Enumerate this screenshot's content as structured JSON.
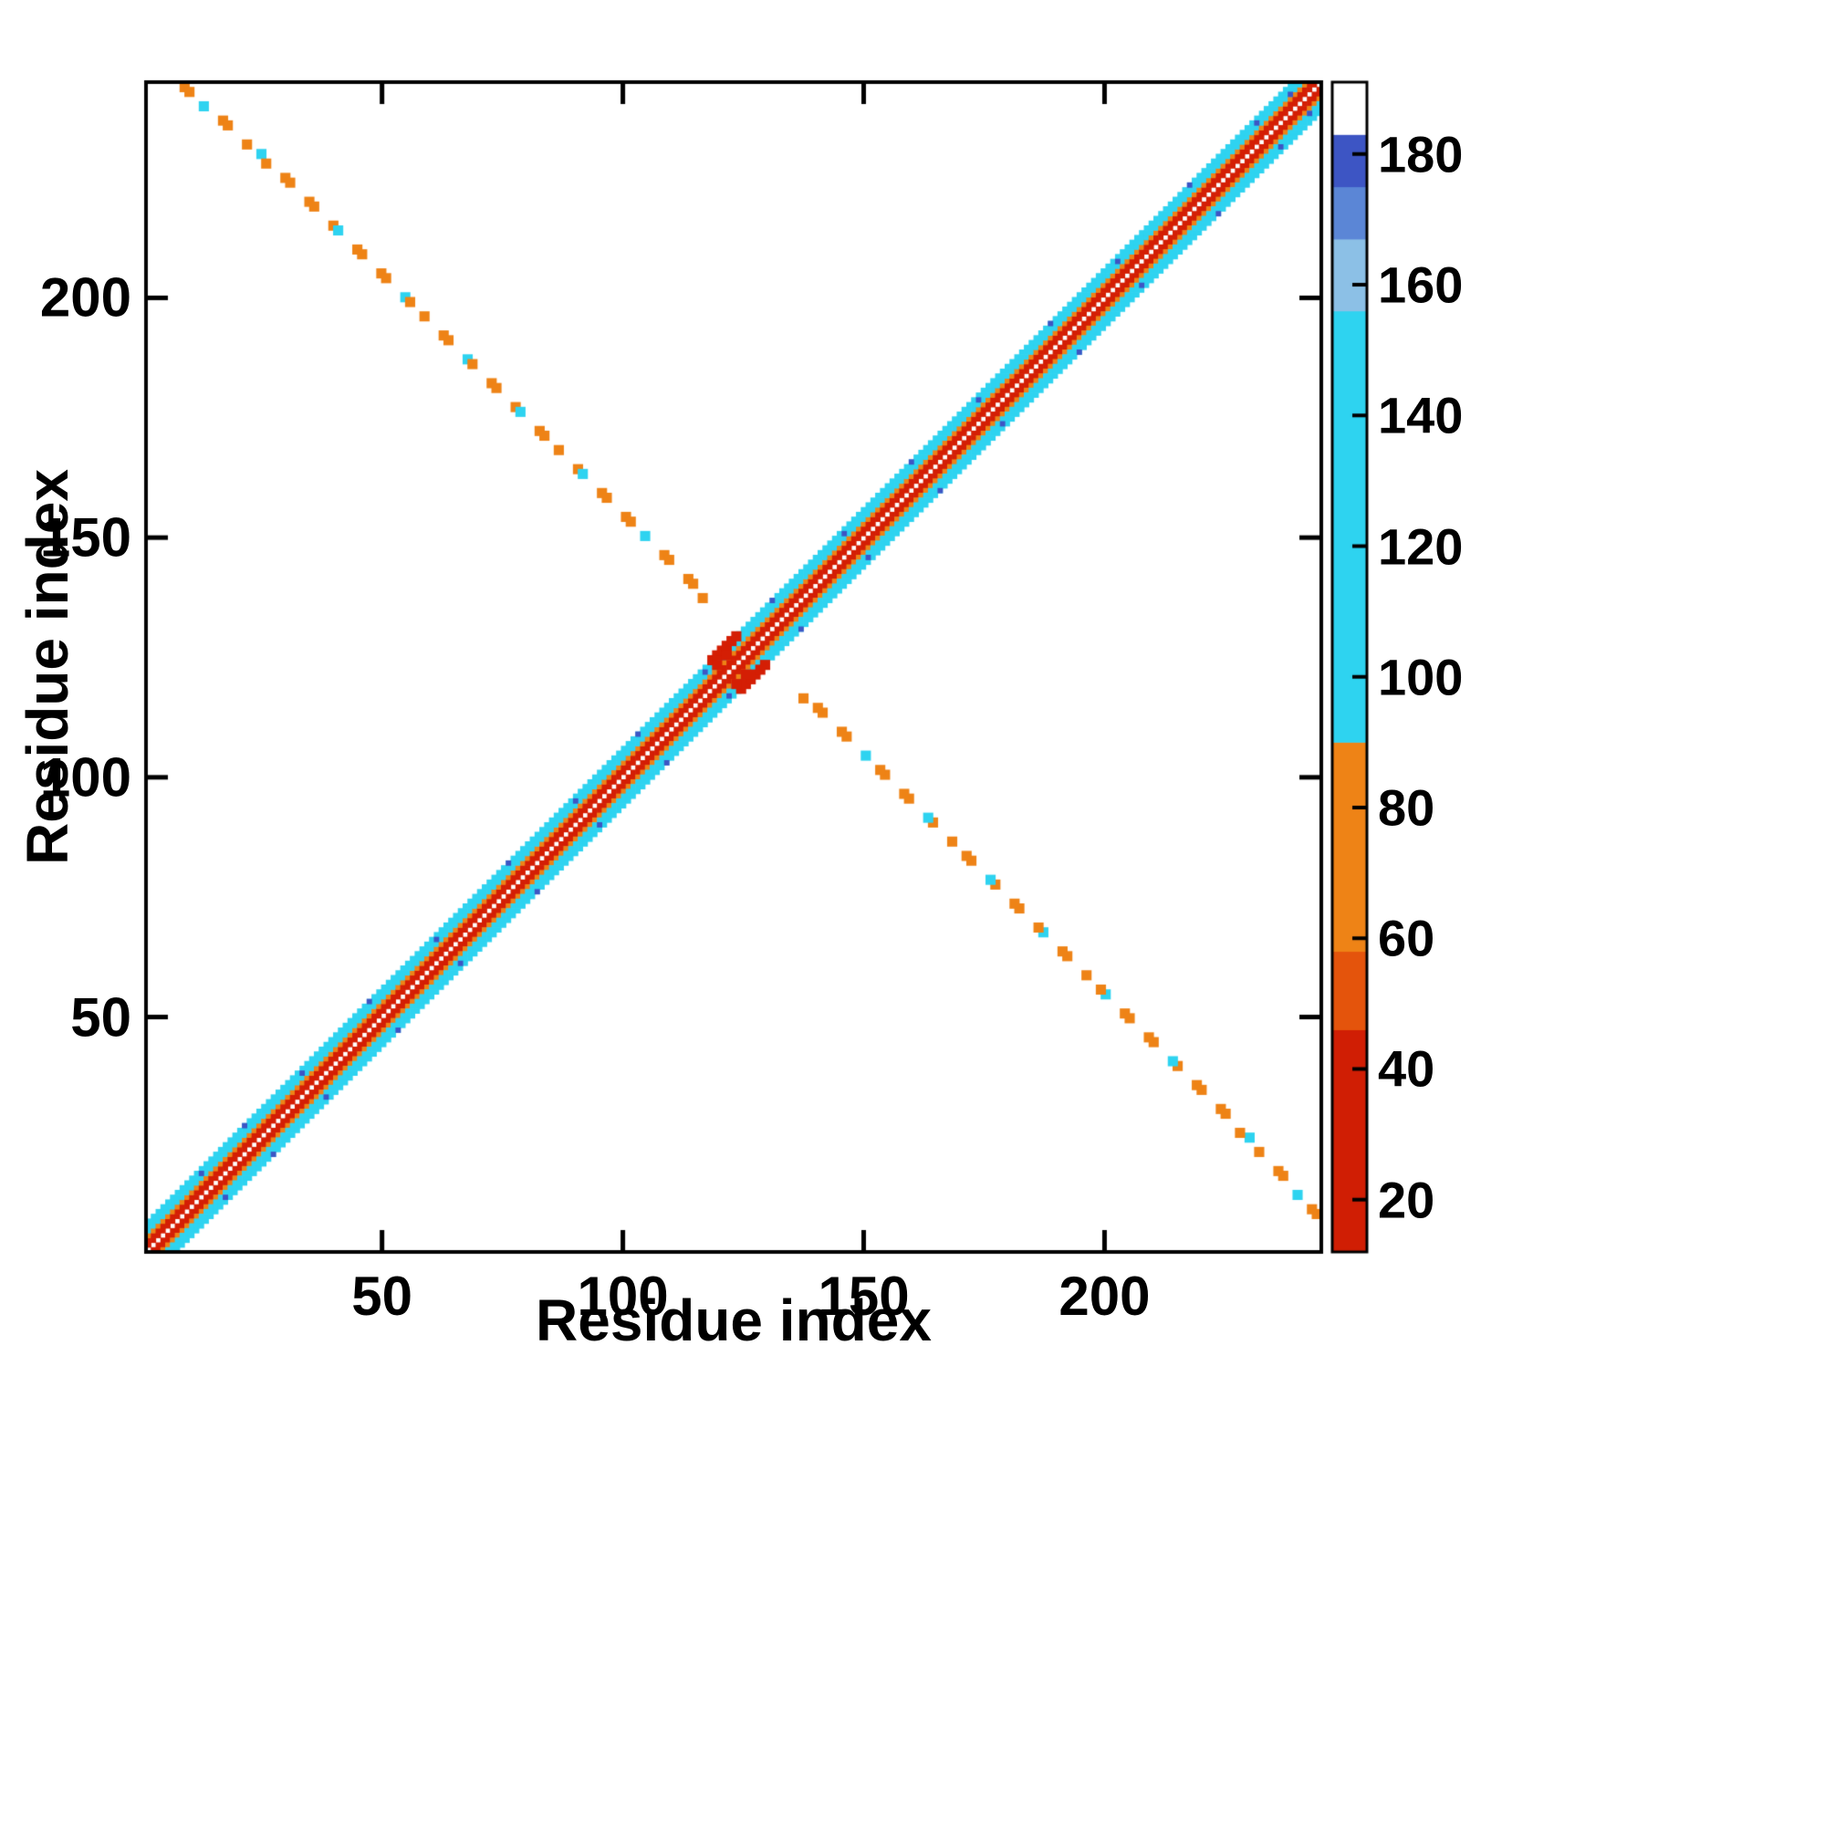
{
  "figure": {
    "background": "#ffffff"
  },
  "chart_data": {
    "type": "heatmap",
    "title": "",
    "xlabel": "Residue index",
    "ylabel": "Residue index",
    "axis_min": 1,
    "axis_max": 245,
    "x_ticks": [
      50,
      100,
      150,
      200
    ],
    "y_ticks": [
      50,
      100,
      150,
      200
    ],
    "grid": false,
    "legend": "colorbar-right",
    "colors": {
      "red": "#d41e04",
      "orange": "#ee8316",
      "cyan": "#2ed3f0",
      "blue": "#3d55c4",
      "frame": "#000000",
      "background": "#ffffff"
    },
    "diagonal_band": [
      {
        "offsets": [
          1,
          2
        ],
        "color": "red"
      },
      {
        "offsets": [
          3
        ],
        "color": "orange"
      },
      {
        "offsets": [
          4,
          5,
          6
        ],
        "color": "cyan"
      }
    ],
    "extra_red_cells": [
      [
        118,
        124
      ],
      [
        119,
        125
      ],
      [
        120,
        126
      ],
      [
        121,
        127
      ],
      [
        122,
        128
      ],
      [
        119,
        123
      ],
      [
        121,
        125
      ],
      [
        123,
        129
      ]
    ],
    "blue_edge_cells": [
      [
        12,
        5
      ],
      [
        21,
        6
      ],
      [
        33,
        5
      ],
      [
        47,
        6
      ],
      [
        61,
        5
      ],
      [
        76,
        6
      ],
      [
        90,
        5
      ],
      [
        103,
        6
      ],
      [
        117,
        5
      ],
      [
        131,
        6
      ],
      [
        146,
        5
      ],
      [
        160,
        6
      ],
      [
        174,
        5
      ],
      [
        189,
        6
      ],
      [
        203,
        5
      ],
      [
        218,
        6
      ],
      [
        232,
        5
      ],
      [
        239,
        4
      ]
    ],
    "antidiagonal_points": [
      [
        8,
        244,
        "o"
      ],
      [
        9,
        243,
        "o"
      ],
      [
        12,
        240,
        "c"
      ],
      [
        16,
        237,
        "o"
      ],
      [
        17,
        236,
        "o"
      ],
      [
        21,
        232,
        "o"
      ],
      [
        24,
        230,
        "c"
      ],
      [
        25,
        228,
        "o"
      ],
      [
        29,
        225,
        "o"
      ],
      [
        30,
        224,
        "o"
      ],
      [
        34,
        220,
        "o"
      ],
      [
        35,
        219,
        "o"
      ],
      [
        39,
        215,
        "o"
      ],
      [
        40,
        214,
        "c"
      ],
      [
        44,
        210,
        "o"
      ],
      [
        45,
        209,
        "o"
      ],
      [
        49,
        205,
        "o"
      ],
      [
        50,
        204,
        "o"
      ],
      [
        54,
        200,
        "c"
      ],
      [
        55,
        199,
        "o"
      ],
      [
        58,
        196,
        "o"
      ],
      [
        62,
        192,
        "o"
      ],
      [
        63,
        191,
        "o"
      ],
      [
        67,
        187,
        "c"
      ],
      [
        68,
        186,
        "o"
      ],
      [
        72,
        182,
        "o"
      ],
      [
        73,
        181,
        "o"
      ],
      [
        77,
        177,
        "o"
      ],
      [
        78,
        176,
        "c"
      ],
      [
        82,
        172,
        "o"
      ],
      [
        83,
        171,
        "o"
      ],
      [
        86,
        168,
        "o"
      ],
      [
        90,
        164,
        "o"
      ],
      [
        91,
        163,
        "c"
      ],
      [
        95,
        159,
        "o"
      ],
      [
        96,
        158,
        "o"
      ],
      [
        100,
        154,
        "o"
      ],
      [
        101,
        153,
        "o"
      ],
      [
        104,
        150,
        "c"
      ],
      [
        108,
        146,
        "o"
      ],
      [
        109,
        145,
        "o"
      ],
      [
        113,
        141,
        "o"
      ],
      [
        114,
        140,
        "o"
      ],
      [
        116,
        137,
        "o"
      ]
    ],
    "colorbar": {
      "min": 12,
      "max": 191,
      "ticks": [
        20,
        40,
        60,
        80,
        100,
        120,
        140,
        160,
        180
      ],
      "segments": [
        {
          "from": 12,
          "to": 46,
          "color": "#d01e04"
        },
        {
          "from": 46,
          "to": 58,
          "color": "#e4540c"
        },
        {
          "from": 58,
          "to": 90,
          "color": "#ee8316"
        },
        {
          "from": 90,
          "to": 156,
          "color": "#2ed3f0"
        },
        {
          "from": 156,
          "to": 167,
          "color": "#8cc0e6"
        },
        {
          "from": 167,
          "to": 175,
          "color": "#5b86d6"
        },
        {
          "from": 175,
          "to": 183,
          "color": "#3d55c4"
        },
        {
          "from": 183,
          "to": 191,
          "color": "#ffffff"
        }
      ]
    }
  }
}
